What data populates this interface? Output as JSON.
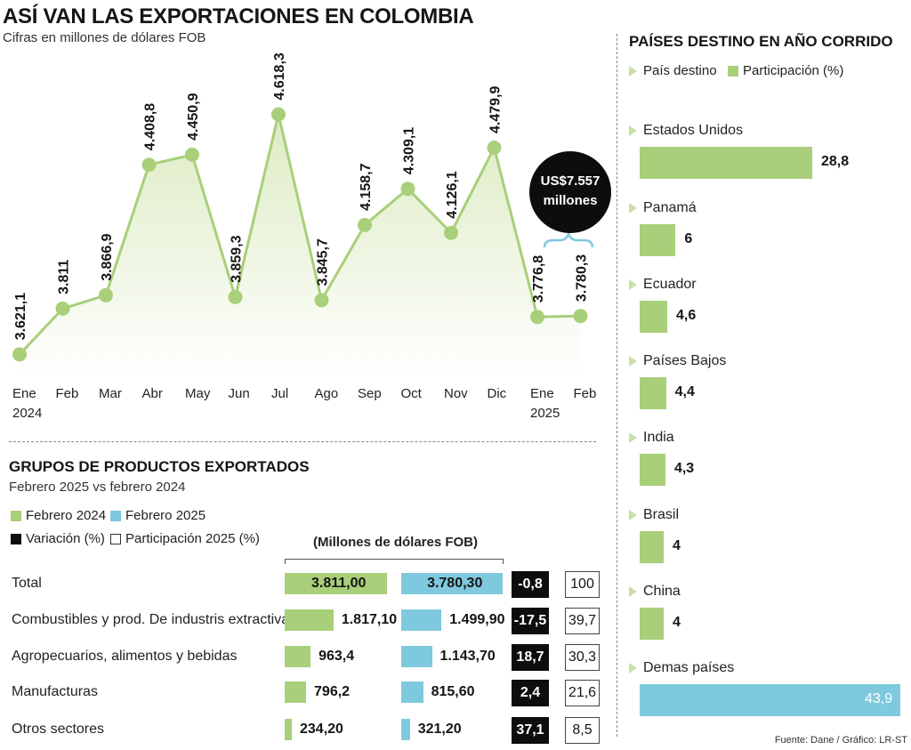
{
  "header": {
    "title": "ASÍ VAN LAS EXPORTACIONES EN COLOMBIA",
    "subtitle": "Cifras en millones de dólares FOB"
  },
  "chart_data": [
    {
      "type": "area",
      "categories": [
        "Ene",
        "Feb",
        "Mar",
        "Abr",
        "May",
        "Jun",
        "Jul",
        "Ago",
        "Sep",
        "Oct",
        "Nov",
        "Dic",
        "Ene",
        "Feb"
      ],
      "year_labels": [
        "2024",
        "",
        "",
        "",
        "",
        "",
        "",
        "",
        "",
        "",
        "",
        "",
        "2025",
        ""
      ],
      "values": [
        3621.1,
        3811,
        3866.9,
        4408.8,
        4450.9,
        3859.3,
        4618.3,
        3845.7,
        4158.7,
        4309.1,
        4126.1,
        4479.9,
        3776.8,
        3780.3
      ],
      "value_labels": [
        "3.621,1",
        "3.811",
        "3.866,9",
        "4.408,8",
        "4.450,9",
        "3.859,3",
        "4.618,3",
        "3.845,7",
        "4.158,7",
        "4.309,1",
        "4.126,1",
        "4.479,9",
        "3.776,8",
        "3.780,3"
      ],
      "color": "#a9cf7a",
      "fill_color": "#eef5df",
      "grid": false,
      "annotation": {
        "line1": "US$7.557",
        "line2": "millones",
        "bracket_color": "#7fc9de"
      }
    },
    {
      "type": "bar",
      "title": "GRUPOS DE PRODUCTOS EXPORTADOS",
      "subtitle": "Febrero 2025 vs febrero 2024",
      "units": "(Millones de dólares FOB)",
      "legend": {
        "feb2024": "Febrero 2024",
        "feb2025": "Febrero 2025",
        "variation": "Variación (%)",
        "share": "Participación 2025 (%)"
      },
      "colors": {
        "feb2024": "#a9cf7a",
        "feb2025": "#7fc9de",
        "variation": "#0d0d0d"
      },
      "categories": [
        "Total",
        "Combustibles y prod. De industris extractivas",
        "Agropecuarios, alimentos y bebidas",
        "Manufacturas",
        "Otros sectores"
      ],
      "series": [
        {
          "name": "Febrero 2024",
          "values": [
            3811.0,
            1817.1,
            963.4,
            796.2,
            234.2
          ],
          "labels": [
            "3.811,00",
            "1.817,10",
            "963,4",
            "796,2",
            "234,20"
          ]
        },
        {
          "name": "Febrero 2025",
          "values": [
            3780.3,
            1499.9,
            1143.7,
            815.6,
            321.2
          ],
          "labels": [
            "3.780,30",
            "1.499,90",
            "1.143,70",
            "815,60",
            "321,20"
          ]
        }
      ],
      "variation": [
        "-0,8",
        "-17,5",
        "18,7",
        "2,4",
        "37,1"
      ],
      "share": [
        "100",
        "39,7",
        "30,3",
        "21,6",
        "8,5"
      ]
    },
    {
      "type": "bar",
      "title": "PAÍSES DESTINO EN AÑO CORRIDO",
      "legend": {
        "country": "País destino",
        "share": "Participación (%)"
      },
      "categories": [
        "Estados Unidos",
        "Panamá",
        "Ecuador",
        "Países Bajos",
        "India",
        "Brasil",
        "China",
        "Demas países"
      ],
      "values": [
        28.8,
        6,
        4.6,
        4.4,
        4.3,
        4,
        4,
        43.9
      ],
      "value_labels": [
        "28,8",
        "6",
        "4,6",
        "4,4",
        "4,3",
        "4",
        "4",
        "43,9"
      ],
      "colors": {
        "default": "#a9cf7a",
        "highlight": "#7fc9de"
      }
    }
  ],
  "footer": {
    "source": "Fuente: Dane / Gráfico: LR-ST"
  }
}
